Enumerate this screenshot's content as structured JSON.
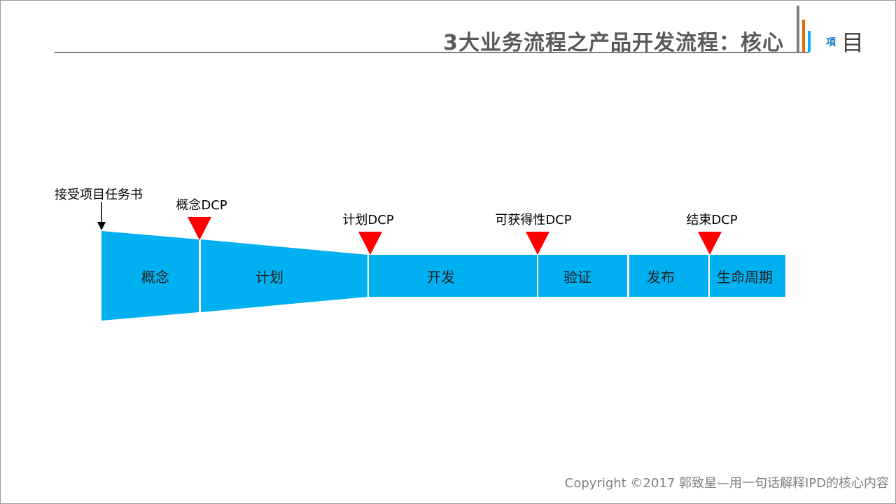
{
  "title": "3大业务流程之产品开发流程：核心",
  "logo": {
    "small_text": "項",
    "big_text": "目",
    "bar_colors": [
      "#7f7f7f",
      "#e36c0a",
      "#00b0f0"
    ]
  },
  "start_label": "接受项目任务书",
  "phases": [
    "概念",
    "计划",
    "开发",
    "验证",
    "发布",
    "生命周期"
  ],
  "dcps": [
    "概念DCP",
    "计划DCP",
    "可获得性DCP",
    "结束DCP"
  ],
  "colors": {
    "phase_fill": "#00b0f0",
    "dcp_marker": "#ff0000",
    "title_text": "#595959"
  },
  "footer": "Copyright ©2017 郭致星—用一句话解释IPD的核心内容"
}
